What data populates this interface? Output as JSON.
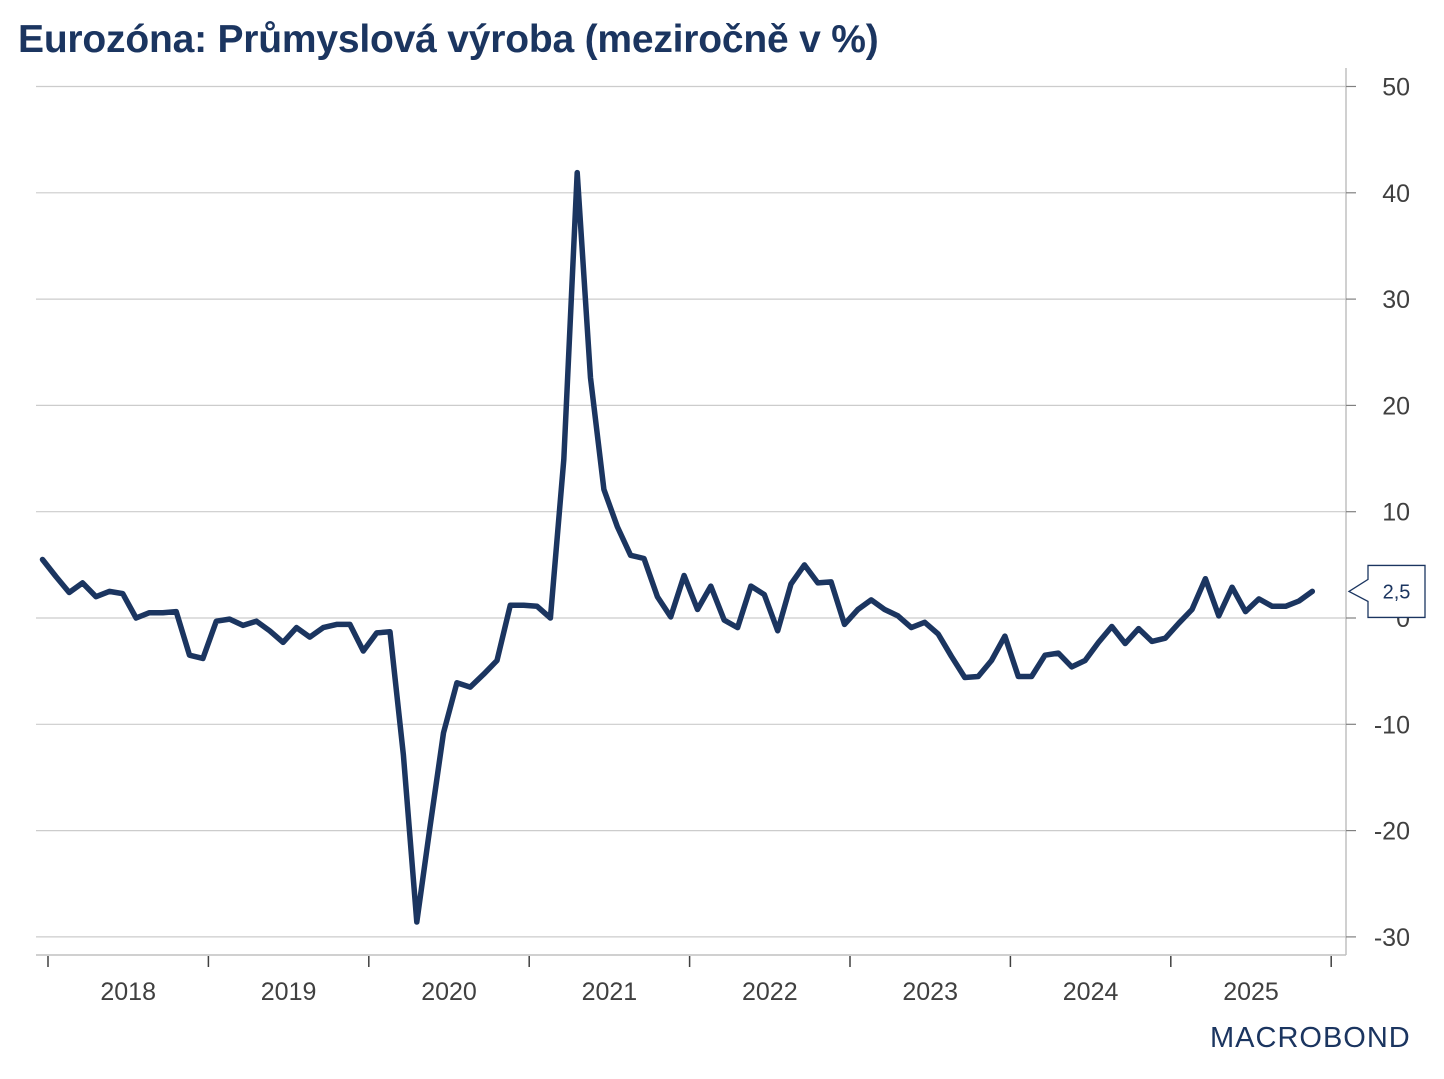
{
  "title": "Eurozóna: Průmyslová výroba (meziročně v %)",
  "logo": "MACROBOND",
  "colors": {
    "line": "#1b3560",
    "grid": "#cccccc",
    "axis": "#c0c0c0",
    "tick_text": "#404040",
    "title": "#1b3560"
  },
  "last_value_label": "2,5",
  "chart_data": {
    "type": "line",
    "title": "Eurozóna: Průmyslová výroba (meziročně v %)",
    "xlabel": "",
    "ylabel": "",
    "ylim": [
      -30,
      50
    ],
    "yticks": [
      50,
      40,
      30,
      20,
      10,
      0,
      -10,
      -20,
      -30
    ],
    "ytick_labels": [
      "50",
      "40",
      "30",
      "20",
      "10",
      "0",
      "-10",
      "-20",
      "-30"
    ],
    "xtick_labels": [
      "2018",
      "2019",
      "2020",
      "2021",
      "2022",
      "2023",
      "2024",
      "2025"
    ],
    "grid": true,
    "y_axis_position": "right",
    "legend": null,
    "frequency": "monthly",
    "start": "2018-01",
    "series": [
      {
        "name": "Eurozóna: Průmyslová výroba (meziročně v %)",
        "last_value_label": "2,5",
        "values": [
          5.5,
          3.9,
          2.4,
          3.3,
          2.0,
          2.5,
          2.3,
          0.0,
          0.5,
          0.5,
          0.6,
          -3.5,
          -3.8,
          -0.3,
          -0.1,
          -0.7,
          -0.3,
          -1.2,
          -2.3,
          -0.9,
          -1.8,
          -0.9,
          -0.6,
          -0.6,
          -3.1,
          -1.4,
          -1.3,
          -12.9,
          -28.6,
          -19.6,
          -10.8,
          -6.1,
          -6.5,
          -5.3,
          -4.0,
          1.2,
          1.2,
          1.1,
          0.0,
          14.9,
          41.9,
          22.6,
          12.1,
          8.6,
          5.9,
          5.6,
          2.0,
          0.1,
          4.0,
          0.8,
          3.0,
          -0.2,
          -0.9,
          3.0,
          2.2,
          -1.2,
          3.2,
          5.0,
          3.3,
          3.4,
          -0.6,
          0.8,
          1.7,
          0.8,
          0.2,
          -0.9,
          -0.4,
          -1.5,
          -3.6,
          -5.6,
          -5.5,
          -4.0,
          -1.7,
          -5.5,
          -5.5,
          -3.5,
          -3.3,
          -4.6,
          -4.0,
          -2.3,
          -0.8,
          -2.4,
          -1.0,
          -2.2,
          -1.9,
          -0.5,
          0.8,
          3.7,
          0.2,
          2.9,
          0.6,
          1.8,
          1.1,
          1.1,
          1.6,
          2.5
        ]
      }
    ]
  }
}
